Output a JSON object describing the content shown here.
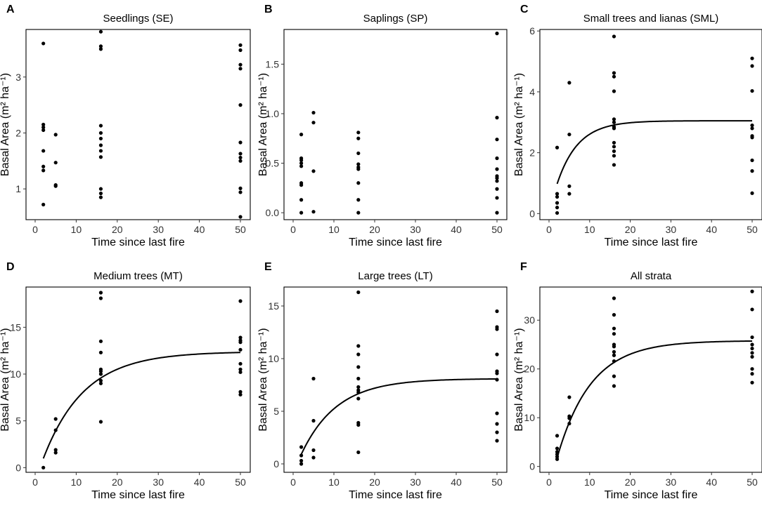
{
  "chart_data": [
    {
      "type": "scatter",
      "panel": "A",
      "title": "Seedlings (SE)",
      "xlabel": "Time since last fire",
      "ylabel": "Basal Area (m² ha⁻¹)",
      "xlim": [
        0,
        50
      ],
      "ylim": [
        0.45,
        3.85
      ],
      "xticks": [
        0,
        10,
        20,
        30,
        40,
        50
      ],
      "yticks": [
        1,
        2,
        3
      ],
      "points": [
        [
          2,
          3.6
        ],
        [
          2,
          2.15
        ],
        [
          2,
          2.1
        ],
        [
          2,
          2.05
        ],
        [
          2,
          1.68
        ],
        [
          2,
          1.4
        ],
        [
          2,
          1.33
        ],
        [
          2,
          0.72
        ],
        [
          5,
          1.97
        ],
        [
          5,
          1.47
        ],
        [
          5,
          1.07
        ],
        [
          5,
          1.05
        ],
        [
          16,
          3.81
        ],
        [
          16,
          3.55
        ],
        [
          16,
          3.5
        ],
        [
          16,
          2.13
        ],
        [
          16,
          2.0
        ],
        [
          16,
          1.9
        ],
        [
          16,
          1.78
        ],
        [
          16,
          1.68
        ],
        [
          16,
          1.57
        ],
        [
          16,
          1.0
        ],
        [
          16,
          0.92
        ],
        [
          16,
          0.85
        ],
        [
          50,
          3.57
        ],
        [
          50,
          3.48
        ],
        [
          50,
          3.22
        ],
        [
          50,
          3.15
        ],
        [
          50,
          2.5
        ],
        [
          50,
          1.83
        ],
        [
          50,
          1.63
        ],
        [
          50,
          1.56
        ],
        [
          50,
          1.5
        ],
        [
          50,
          1.01
        ],
        [
          50,
          0.94
        ],
        [
          50,
          0.5
        ]
      ],
      "curve": null
    },
    {
      "type": "scatter",
      "panel": "B",
      "title": "Saplings (SP)",
      "xlabel": "Time since last fire",
      "ylabel": "Basal Area (m² ha⁻¹)",
      "xlim": [
        0,
        50
      ],
      "ylim": [
        -0.07,
        1.85
      ],
      "xticks": [
        0,
        10,
        20,
        30,
        40,
        50
      ],
      "yticks": [
        0.0,
        0.5,
        1.0,
        1.5
      ],
      "ytick_labels": [
        "0.0",
        "0.5",
        "1.0",
        "1.5"
      ],
      "points": [
        [
          2,
          0.79
        ],
        [
          2,
          0.55
        ],
        [
          2,
          0.53
        ],
        [
          2,
          0.5
        ],
        [
          2,
          0.47
        ],
        [
          2,
          0.3
        ],
        [
          2,
          0.28
        ],
        [
          2,
          0.13
        ],
        [
          2,
          0.0
        ],
        [
          5,
          1.01
        ],
        [
          5,
          0.91
        ],
        [
          5,
          0.42
        ],
        [
          5,
          0.01
        ],
        [
          16,
          0.81
        ],
        [
          16,
          0.75
        ],
        [
          16,
          0.6
        ],
        [
          16,
          0.49
        ],
        [
          16,
          0.46
        ],
        [
          16,
          0.44
        ],
        [
          16,
          0.3
        ],
        [
          16,
          0.13
        ],
        [
          16,
          0.0
        ],
        [
          50,
          1.81
        ],
        [
          50,
          0.96
        ],
        [
          50,
          0.74
        ],
        [
          50,
          0.55
        ],
        [
          50,
          0.44
        ],
        [
          50,
          0.37
        ],
        [
          50,
          0.35
        ],
        [
          50,
          0.32
        ],
        [
          50,
          0.24
        ],
        [
          50,
          0.15
        ],
        [
          50,
          0.0
        ]
      ],
      "curve": null
    },
    {
      "type": "scatter",
      "panel": "C",
      "title": "Small trees and lianas (SML)",
      "xlabel": "Time since last fire",
      "ylabel": "Basal Area (m² ha⁻¹)",
      "xlim": [
        0,
        50
      ],
      "ylim": [
        -0.2,
        6.05
      ],
      "xticks": [
        0,
        10,
        20,
        30,
        40,
        50
      ],
      "yticks": [
        0,
        2,
        4,
        6
      ],
      "points": [
        [
          2,
          2.17
        ],
        [
          2,
          0.65
        ],
        [
          2,
          0.55
        ],
        [
          2,
          0.35
        ],
        [
          2,
          0.2
        ],
        [
          2,
          0.02
        ],
        [
          5,
          4.3
        ],
        [
          5,
          2.6
        ],
        [
          5,
          0.9
        ],
        [
          5,
          0.65
        ],
        [
          16,
          5.82
        ],
        [
          16,
          4.62
        ],
        [
          16,
          4.5
        ],
        [
          16,
          4.02
        ],
        [
          16,
          3.1
        ],
        [
          16,
          3.0
        ],
        [
          16,
          2.85
        ],
        [
          16,
          2.8
        ],
        [
          16,
          2.33
        ],
        [
          16,
          2.2
        ],
        [
          16,
          2.05
        ],
        [
          16,
          1.9
        ],
        [
          16,
          1.6
        ],
        [
          50,
          5.1
        ],
        [
          50,
          4.85
        ],
        [
          50,
          4.03
        ],
        [
          50,
          2.9
        ],
        [
          50,
          2.8
        ],
        [
          50,
          2.55
        ],
        [
          50,
          2.5
        ],
        [
          50,
          1.75
        ],
        [
          50,
          1.4
        ],
        [
          50,
          0.67
        ]
      ],
      "curve": {
        "model": "plateau",
        "asymptote": 3.05,
        "y_at_x0": 0.0,
        "rate": 0.193,
        "x_start": 2,
        "x_end": 50
      }
    },
    {
      "type": "scatter",
      "panel": "D",
      "title": "Medium trees (MT)",
      "xlabel": "Time since last fire",
      "ylabel": "Basal Area (m² ha⁻¹)",
      "xlim": [
        0,
        50
      ],
      "ylim": [
        -0.5,
        19.3
      ],
      "xticks": [
        0,
        10,
        20,
        30,
        40,
        50
      ],
      "yticks": [
        0,
        5,
        10,
        15
      ],
      "points": [
        [
          2,
          0.0
        ],
        [
          5,
          5.2
        ],
        [
          5,
          4.0
        ],
        [
          5,
          1.9
        ],
        [
          5,
          1.6
        ],
        [
          16,
          18.7
        ],
        [
          16,
          18.1
        ],
        [
          16,
          13.5
        ],
        [
          16,
          12.3
        ],
        [
          16,
          10.5
        ],
        [
          16,
          10.3
        ],
        [
          16,
          10.0
        ],
        [
          16,
          9.3
        ],
        [
          16,
          9.0
        ],
        [
          16,
          4.9
        ],
        [
          50,
          17.8
        ],
        [
          50,
          13.9
        ],
        [
          50,
          13.6
        ],
        [
          50,
          13.4
        ],
        [
          50,
          12.6
        ],
        [
          50,
          11.1
        ],
        [
          50,
          10.5
        ],
        [
          50,
          10.2
        ],
        [
          50,
          8.1
        ],
        [
          50,
          7.8
        ]
      ],
      "curve": {
        "model": "plateau",
        "asymptote": 12.4,
        "y_at_x0": -1.55,
        "rate": 0.1,
        "x_start": 2,
        "x_end": 50
      }
    },
    {
      "type": "scatter",
      "panel": "E",
      "title": "Large trees (LT)",
      "xlabel": "Time since last fire",
      "ylabel": "Basal Area (m² ha⁻¹)",
      "xlim": [
        0,
        50
      ],
      "ylim": [
        -0.8,
        16.8
      ],
      "xticks": [
        0,
        10,
        20,
        30,
        40,
        50
      ],
      "yticks": [
        0,
        5,
        10,
        15
      ],
      "points": [
        [
          2,
          1.6
        ],
        [
          2,
          0.8
        ],
        [
          2,
          0.3
        ],
        [
          2,
          0.0
        ],
        [
          5,
          8.1
        ],
        [
          5,
          4.1
        ],
        [
          5,
          1.3
        ],
        [
          5,
          0.6
        ],
        [
          16,
          16.3
        ],
        [
          16,
          11.2
        ],
        [
          16,
          10.4
        ],
        [
          16,
          9.2
        ],
        [
          16,
          8.1
        ],
        [
          16,
          7.3
        ],
        [
          16,
          7.0
        ],
        [
          16,
          6.8
        ],
        [
          16,
          6.2
        ],
        [
          16,
          3.9
        ],
        [
          16,
          3.7
        ],
        [
          16,
          1.1
        ],
        [
          50,
          14.5
        ],
        [
          50,
          13.0
        ],
        [
          50,
          12.8
        ],
        [
          50,
          10.4
        ],
        [
          50,
          8.8
        ],
        [
          50,
          8.6
        ],
        [
          50,
          8.0
        ],
        [
          50,
          4.8
        ],
        [
          50,
          3.8
        ],
        [
          50,
          3.0
        ],
        [
          50,
          2.2
        ]
      ],
      "curve": {
        "model": "plateau",
        "asymptote": 8.1,
        "y_at_x0": -0.95,
        "rate": 0.115,
        "x_start": 2,
        "x_end": 50
      }
    },
    {
      "type": "scatter",
      "panel": "F",
      "title": "All strata",
      "xlabel": "Time since last fire",
      "ylabel": "Basal Area (m² ha⁻¹)",
      "xlim": [
        0,
        50
      ],
      "ylim": [
        -1.2,
        36.8
      ],
      "xticks": [
        0,
        10,
        20,
        30,
        40,
        50
      ],
      "yticks": [
        0,
        10,
        20,
        30
      ],
      "points": [
        [
          2,
          6.3
        ],
        [
          2,
          3.7
        ],
        [
          2,
          3.0
        ],
        [
          2,
          2.5
        ],
        [
          2,
          2.0
        ],
        [
          2,
          1.5
        ],
        [
          5,
          14.2
        ],
        [
          5,
          10.3
        ],
        [
          5,
          9.9
        ],
        [
          5,
          8.8
        ],
        [
          16,
          34.5
        ],
        [
          16,
          31.1
        ],
        [
          16,
          28.3
        ],
        [
          16,
          27.2
        ],
        [
          16,
          25.0
        ],
        [
          16,
          24.6
        ],
        [
          16,
          23.5
        ],
        [
          16,
          22.8
        ],
        [
          16,
          21.6
        ],
        [
          16,
          18.5
        ],
        [
          16,
          16.5
        ],
        [
          50,
          35.9
        ],
        [
          50,
          32.2
        ],
        [
          50,
          26.5
        ],
        [
          50,
          25.0
        ],
        [
          50,
          24.2
        ],
        [
          50,
          23.3
        ],
        [
          50,
          22.5
        ],
        [
          50,
          20.0
        ],
        [
          50,
          19.0
        ],
        [
          50,
          17.2
        ]
      ],
      "curve": {
        "model": "plateau",
        "asymptote": 25.8,
        "y_at_x0": -4.7,
        "rate": 0.12,
        "x_start": 2,
        "x_end": 50
      }
    }
  ]
}
